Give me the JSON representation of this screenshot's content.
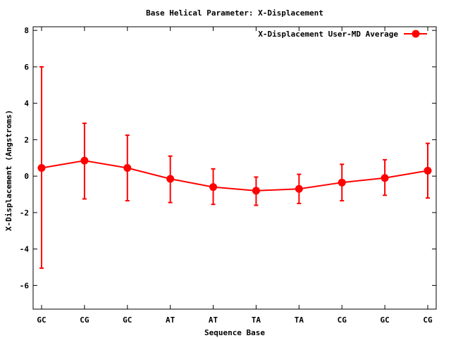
{
  "chart_data": {
    "type": "line",
    "title": "Base  Helical Parameter: X-Displacement",
    "xlabel": "Sequence Base",
    "ylabel": "X-Displacement (Angstroms)",
    "ylim": [
      -7.3,
      8.2
    ],
    "yticks": [
      -6,
      -4,
      -2,
      0,
      2,
      4,
      6,
      8
    ],
    "yticklabels": [
      "-6",
      "-4",
      "-2",
      "0",
      "2",
      "4",
      "6",
      "8"
    ],
    "categories": [
      "GC",
      "CG",
      "GC",
      "AT",
      "AT",
      "TA",
      "TA",
      "CG",
      "GC",
      "CG"
    ],
    "grid": false,
    "legend_position": "top-right",
    "series": [
      {
        "name": "X-Displacement User-MD Average",
        "color": "#ff0000",
        "values": [
          0.45,
          0.85,
          0.45,
          -0.15,
          -0.6,
          -0.8,
          -0.7,
          -0.35,
          -0.1,
          0.3
        ],
        "err_low": [
          -5.05,
          -1.25,
          -1.35,
          -1.45,
          -1.55,
          -1.6,
          -1.5,
          -1.35,
          -1.05,
          -1.2
        ],
        "err_high": [
          6.0,
          2.9,
          2.25,
          1.1,
          0.4,
          -0.05,
          0.1,
          0.65,
          0.9,
          1.8
        ]
      }
    ]
  }
}
